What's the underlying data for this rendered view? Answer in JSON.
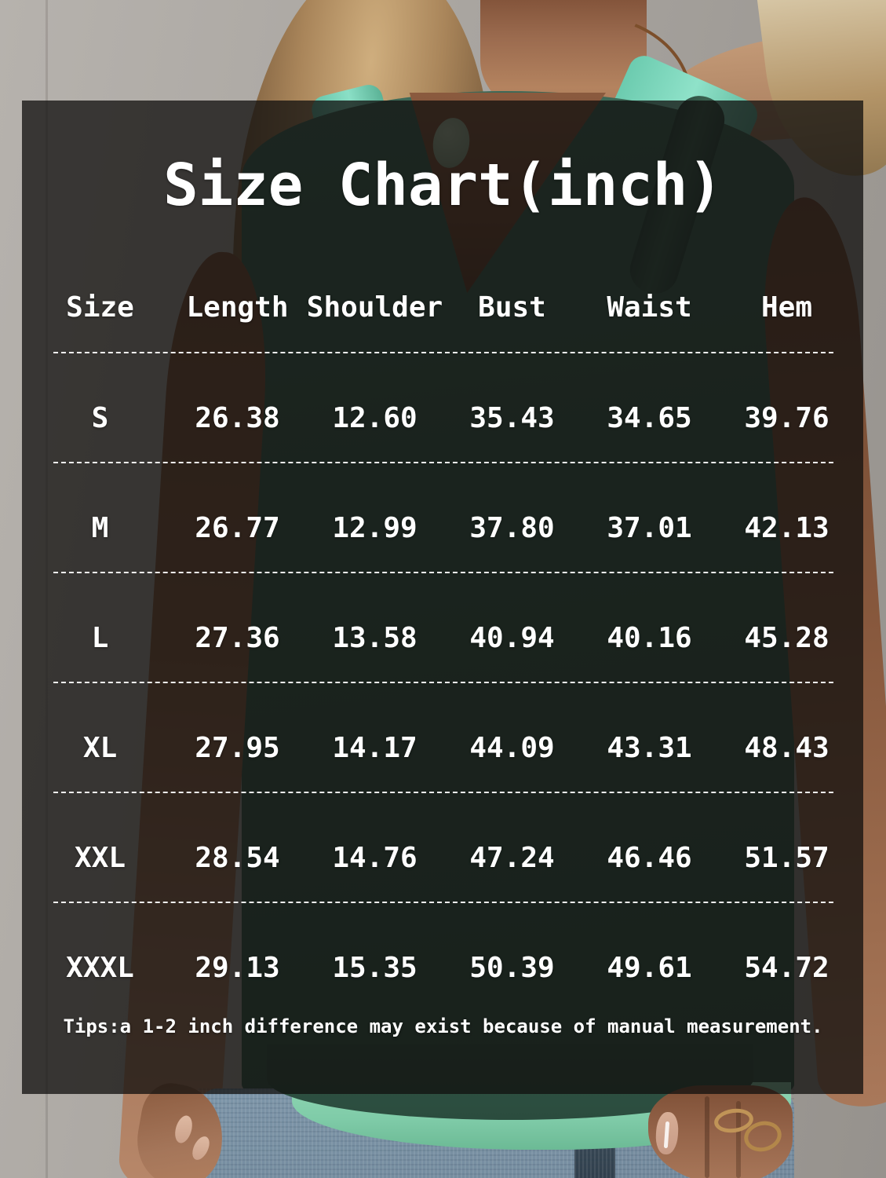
{
  "chart_data": {
    "type": "table",
    "title": "Size Chart(inch)",
    "units": "inch",
    "columns": [
      "Size",
      "Length",
      "Shoulder",
      "Bust",
      "Waist",
      "Hem"
    ],
    "rows": [
      {
        "cells": [
          "S",
          "26.38",
          "12.60",
          "35.43",
          "34.65",
          "39.76"
        ]
      },
      {
        "cells": [
          "M",
          "26.77",
          "12.99",
          "37.80",
          "37.01",
          "42.13"
        ]
      },
      {
        "cells": [
          "L",
          "27.36",
          "13.58",
          "40.94",
          "40.16",
          "45.28"
        ]
      },
      {
        "cells": [
          "XL",
          "27.95",
          "14.17",
          "44.09",
          "43.31",
          "48.43"
        ]
      },
      {
        "cells": [
          "XXL",
          "28.54",
          "14.76",
          "47.24",
          "46.46",
          "51.57"
        ]
      },
      {
        "cells": [
          "XXXL",
          "29.13",
          "15.35",
          "50.39",
          "49.61",
          "54.72"
        ]
      }
    ],
    "note": "Tips:a 1-2 inch difference may exist because of manual measurement.",
    "layout_hints": {
      "grid": "off",
      "separators": "dashed-horizontal",
      "text_color": "#ffffff"
    }
  },
  "colors": {
    "text": "#ffffff",
    "overlay_shade": "#111010",
    "mint_accent": "#7fd6bd",
    "tank_green": "#3a614f",
    "denim_blue": "#7d95a8",
    "wall_gray": "#aaa6a1"
  }
}
